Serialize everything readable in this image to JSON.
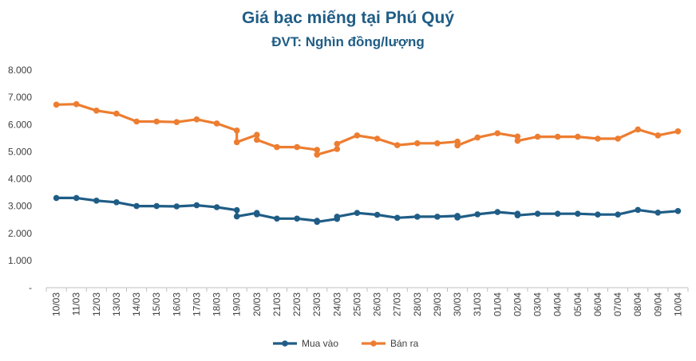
{
  "chart_data": {
    "type": "line",
    "title": "Giá bạc miếng tại Phú Quý",
    "subtitle": "ĐVT: Nghìn đồng/lượng",
    "xlabel": "",
    "ylabel": "",
    "ylim": [
      0,
      8000
    ],
    "ytick_values": [
      0,
      1000,
      2000,
      3000,
      4000,
      5000,
      6000,
      7000,
      8000
    ],
    "ytick_labels": [
      "-",
      "1.000",
      "2.000",
      "3.000",
      "4.000",
      "5.000",
      "6.000",
      "7.000",
      "8.000"
    ],
    "grid": false,
    "legend_position": "bottom-center",
    "categories": [
      "10/03",
      "11/03",
      "12/03",
      "13/03",
      "14/03",
      "15/03",
      "16/03",
      "17/03",
      "18/03",
      "19/03",
      "20/03",
      "21/03",
      "22/03",
      "23/03",
      "24/03",
      "25/03",
      "26/03",
      "27/03",
      "28/03",
      "29/03",
      "30/03",
      "31/03",
      "01/04",
      "02/04",
      "03/04",
      "04/04",
      "05/04",
      "06/04",
      "07/04",
      "08/04",
      "09/04",
      "10/04"
    ],
    "series": [
      {
        "name": "Mua vào",
        "color": "#1f5d86",
        "points": [
          [
            0,
            3300
          ],
          [
            1,
            3300
          ],
          [
            2,
            3200
          ],
          [
            3,
            3140
          ],
          [
            4,
            3000
          ],
          [
            5,
            3000
          ],
          [
            6,
            2990
          ],
          [
            7,
            3030
          ],
          [
            8,
            2960
          ],
          [
            9,
            2850
          ],
          [
            9,
            2620
          ],
          [
            10,
            2750
          ],
          [
            10,
            2700
          ],
          [
            11,
            2540
          ],
          [
            12,
            2540
          ],
          [
            13,
            2460
          ],
          [
            13,
            2420
          ],
          [
            14,
            2530
          ],
          [
            14,
            2610
          ],
          [
            15,
            2750
          ],
          [
            16,
            2680
          ],
          [
            17,
            2570
          ],
          [
            18,
            2610
          ],
          [
            19,
            2610
          ],
          [
            20,
            2640
          ],
          [
            20,
            2580
          ],
          [
            21,
            2700
          ],
          [
            22,
            2780
          ],
          [
            23,
            2720
          ],
          [
            23,
            2660
          ],
          [
            24,
            2720
          ],
          [
            25,
            2720
          ],
          [
            26,
            2720
          ],
          [
            27,
            2690
          ],
          [
            28,
            2690
          ],
          [
            29,
            2860
          ],
          [
            30,
            2760
          ],
          [
            31,
            2820
          ]
        ]
      },
      {
        "name": "Bán ra",
        "color": "#ed7d31",
        "points": [
          [
            0,
            6730
          ],
          [
            1,
            6750
          ],
          [
            2,
            6510
          ],
          [
            3,
            6400
          ],
          [
            4,
            6110
          ],
          [
            5,
            6110
          ],
          [
            6,
            6090
          ],
          [
            7,
            6190
          ],
          [
            8,
            6040
          ],
          [
            9,
            5780
          ],
          [
            9,
            5350
          ],
          [
            10,
            5620
          ],
          [
            10,
            5440
          ],
          [
            11,
            5170
          ],
          [
            12,
            5170
          ],
          [
            13,
            5070
          ],
          [
            13,
            4890
          ],
          [
            14,
            5100
          ],
          [
            14,
            5290
          ],
          [
            15,
            5600
          ],
          [
            16,
            5480
          ],
          [
            17,
            5240
          ],
          [
            18,
            5310
          ],
          [
            19,
            5310
          ],
          [
            20,
            5370
          ],
          [
            20,
            5230
          ],
          [
            21,
            5520
          ],
          [
            22,
            5680
          ],
          [
            23,
            5560
          ],
          [
            23,
            5400
          ],
          [
            24,
            5550
          ],
          [
            25,
            5550
          ],
          [
            26,
            5550
          ],
          [
            27,
            5480
          ],
          [
            28,
            5480
          ],
          [
            29,
            5820
          ],
          [
            30,
            5600
          ],
          [
            31,
            5750
          ]
        ]
      }
    ]
  }
}
